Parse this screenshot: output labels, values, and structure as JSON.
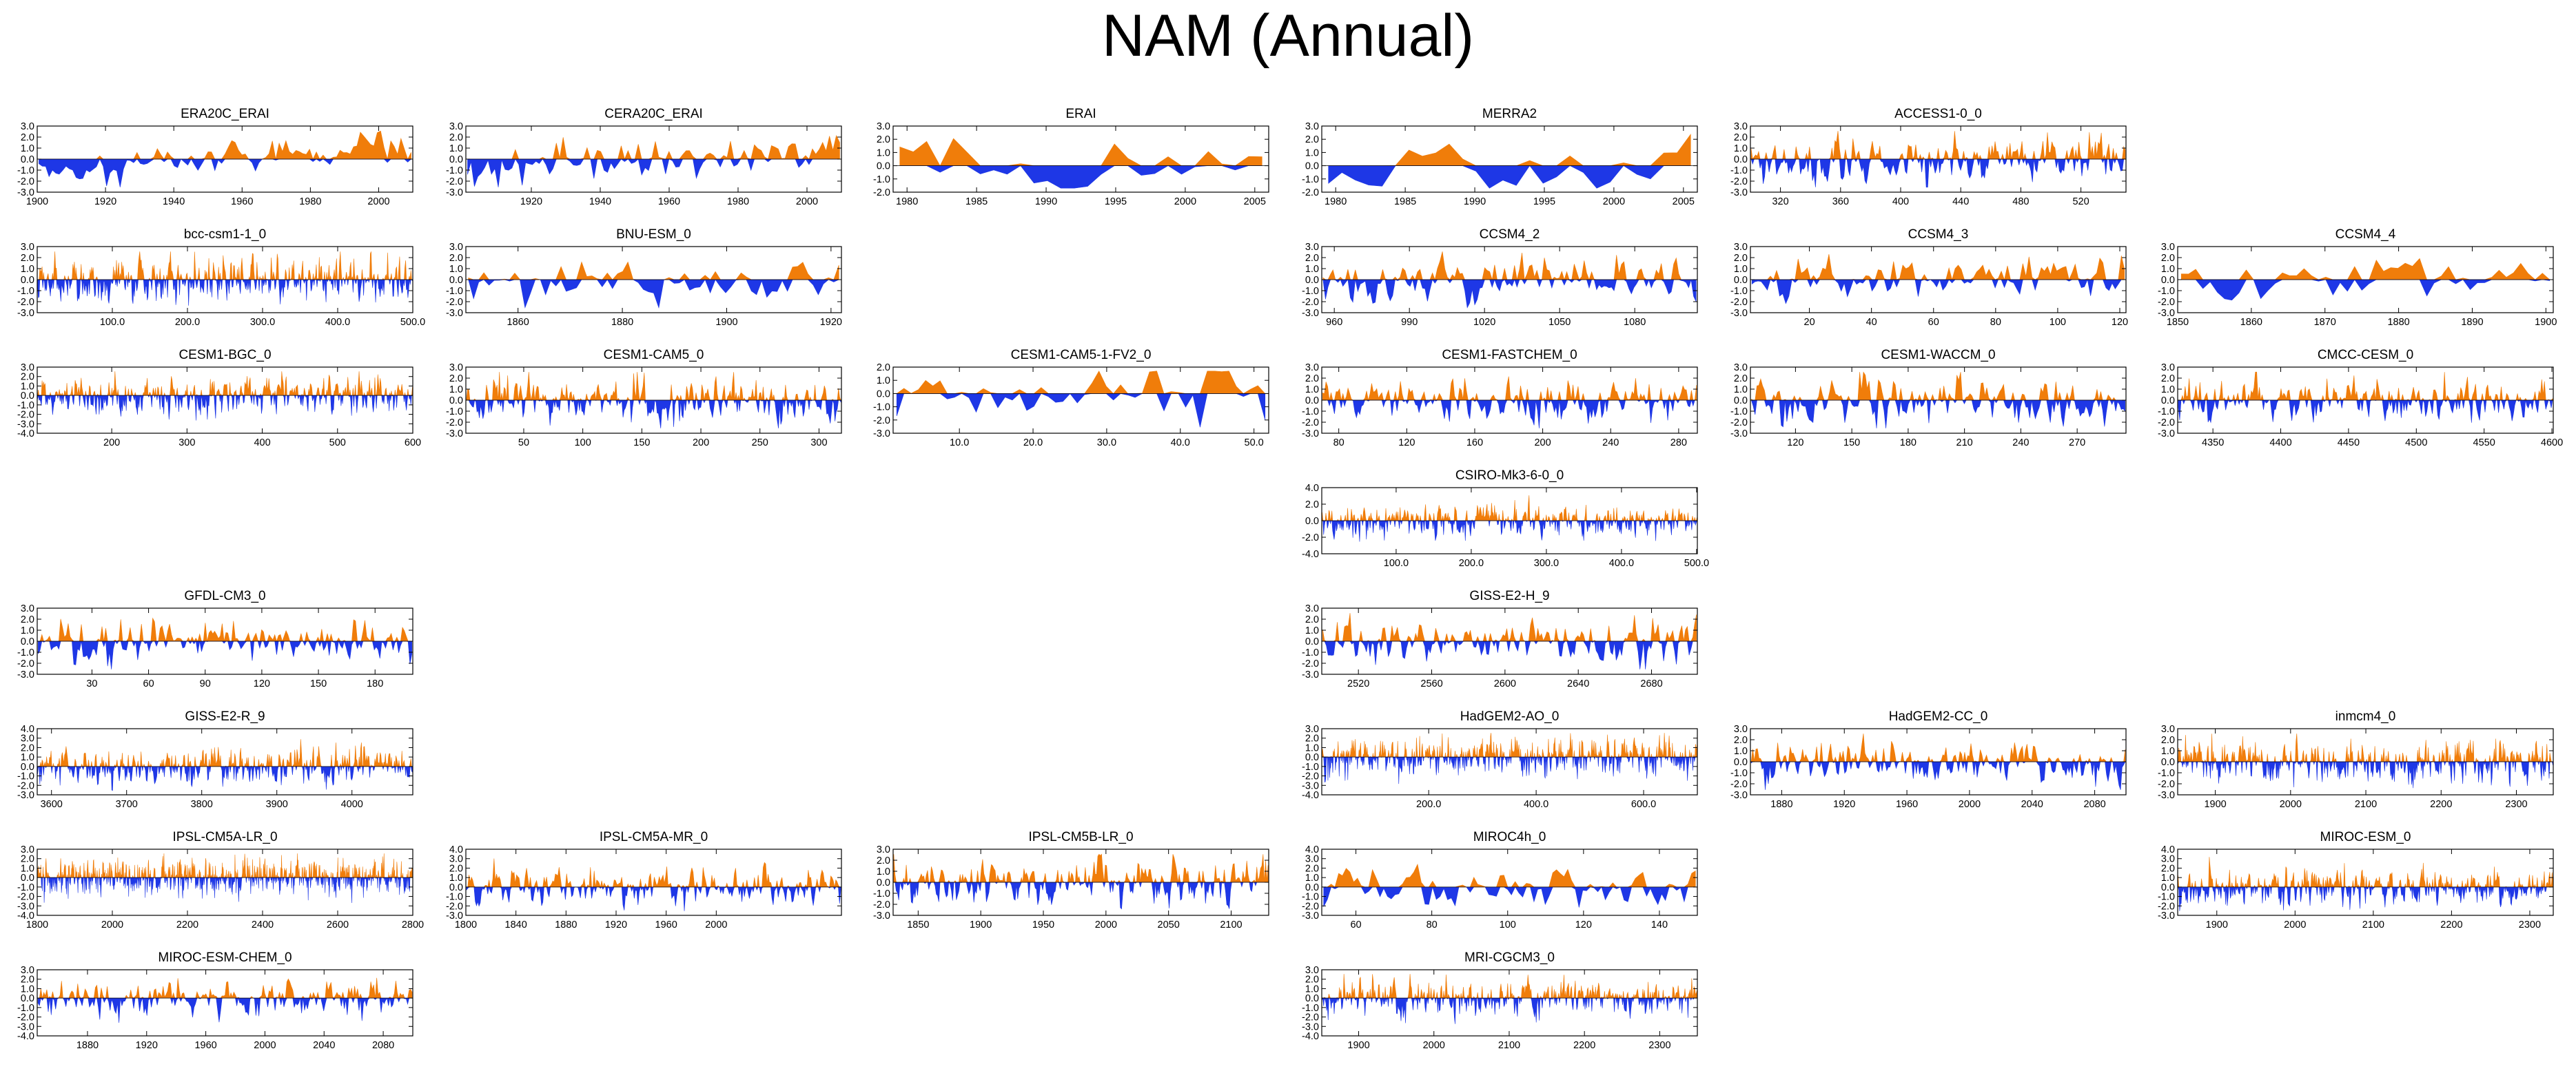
{
  "figure_title": "NAM (Annual)",
  "colors": {
    "positive": "#f07d0a",
    "negative": "#1e37e6",
    "axis": "#000000"
  },
  "chart_data": [
    {
      "type": "area",
      "title": "ERA20C_ERAI",
      "xlim": [
        1900,
        2010
      ],
      "xticks": [
        "1900",
        "1920",
        "1940",
        "1960",
        "1980",
        "2000"
      ],
      "ylim": [
        -3.0,
        3.0
      ],
      "yticks": [
        "3.0",
        "2.0",
        "1.0",
        "0.0",
        "-1.0",
        "-2.0",
        "-3.0"
      ],
      "n_years": 111,
      "seed": 11,
      "amplitude": 0.7,
      "trend": 1.2
    },
    {
      "type": "area",
      "title": "CERA20C_ERAI",
      "xlim": [
        1901,
        2010
      ],
      "xticks": [
        "1920",
        "1940",
        "1960",
        "1980",
        "2000"
      ],
      "ylim": [
        -3.0,
        3.0
      ],
      "yticks": [
        "3.0",
        "2.0",
        "1.0",
        "0.0",
        "-1.0",
        "-2.0",
        "-3.0"
      ],
      "n_years": 110,
      "seed": 12,
      "amplitude": 0.8,
      "trend": 0.5
    },
    {
      "type": "area",
      "title": "ERAI",
      "xlim": [
        1979,
        2006
      ],
      "xticks": [
        "1980",
        "1985",
        "1990",
        "1995",
        "2000",
        "2005"
      ],
      "ylim": [
        -2.0,
        3.0
      ],
      "yticks": [
        "3.0",
        "2.0",
        "1.0",
        "0.0",
        "-1.0",
        "-2.0"
      ],
      "n_years": 28,
      "seed": 13,
      "amplitude": 1.0,
      "trend": 0
    },
    {
      "type": "area",
      "title": "MERRA2",
      "xlim": [
        1979,
        2006
      ],
      "xticks": [
        "1980",
        "1985",
        "1990",
        "1995",
        "2000",
        "2005"
      ],
      "ylim": [
        -2.0,
        3.0
      ],
      "yticks": [
        "3.0",
        "2.0",
        "1.0",
        "0.0",
        "-1.0",
        "-2.0"
      ],
      "n_years": 28,
      "seed": 14,
      "amplitude": 1.0,
      "trend": 0
    },
    {
      "type": "area",
      "title": "ACCESS1-0_0",
      "xlim": [
        300,
        550
      ],
      "xticks": [
        "320",
        "360",
        "400",
        "440",
        "480",
        "520"
      ],
      "ylim": [
        -3.0,
        3.0
      ],
      "yticks": [
        "3.0",
        "2.0",
        "1.0",
        "0.0",
        "-1.0",
        "-2.0",
        "-3.0"
      ],
      "n_years": 251,
      "seed": 15,
      "amplitude": 0.9,
      "trend": 0
    },
    {
      "type": "area",
      "title": "bcc-csm1-1_0",
      "xlim": [
        0,
        500
      ],
      "xticks": [
        "100.0",
        "200.0",
        "300.0",
        "400.0",
        "500.0"
      ],
      "ylim": [
        -3.0,
        3.0
      ],
      "yticks": [
        "3.0",
        "2.0",
        "1.0",
        "0.0",
        "-1.0",
        "-2.0",
        "-3.0"
      ],
      "n_years": 500,
      "seed": 16,
      "amplitude": 0.9,
      "trend": 0
    },
    {
      "type": "area",
      "title": "BNU-ESM_0",
      "xlim": [
        1850,
        1922
      ],
      "xticks": [
        "1860",
        "1880",
        "1900",
        "1920"
      ],
      "ylim": [
        -3.0,
        3.0
      ],
      "yticks": [
        "3.0",
        "2.0",
        "1.0",
        "0.0",
        "-1.0",
        "-2.0",
        "-3.0"
      ],
      "n_years": 73,
      "seed": 17,
      "amplitude": 0.9,
      "trend": 0
    },
    {
      "type": "area",
      "title": "CCSM4_2",
      "xlim": [
        955,
        1105
      ],
      "xticks": [
        "960",
        "990",
        "1020",
        "1050",
        "1080"
      ],
      "ylim": [
        -3.0,
        3.0
      ],
      "yticks": [
        "3.0",
        "2.0",
        "1.0",
        "0.0",
        "-1.0",
        "-2.0",
        "-3.0"
      ],
      "n_years": 151,
      "seed": 18,
      "amplitude": 0.9,
      "trend": 0
    },
    {
      "type": "area",
      "title": "CCSM4_3",
      "xlim": [
        1,
        122
      ],
      "xticks": [
        "20",
        "40",
        "60",
        "80",
        "100",
        "120"
      ],
      "ylim": [
        -3.0,
        3.0
      ],
      "yticks": [
        "3.0",
        "2.0",
        "1.0",
        "0.0",
        "-1.0",
        "-2.0",
        "-3.0"
      ],
      "n_years": 122,
      "seed": 19,
      "amplitude": 0.9,
      "trend": 0
    },
    {
      "type": "area",
      "title": "CCSM4_4",
      "xlim": [
        1850,
        1901
      ],
      "xticks": [
        "1850",
        "1860",
        "1870",
        "1880",
        "1890",
        "1900"
      ],
      "ylim": [
        -3.0,
        3.0
      ],
      "yticks": [
        "3.0",
        "2.0",
        "1.0",
        "0.0",
        "-1.0",
        "-2.0",
        "-3.0"
      ],
      "n_years": 52,
      "seed": 20,
      "amplitude": 1.0,
      "trend": 0
    },
    {
      "type": "area",
      "title": "CESM1-BGC_0",
      "xlim": [
        101,
        600
      ],
      "xticks": [
        "200",
        "300",
        "400",
        "500",
        "600"
      ],
      "ylim": [
        -4.0,
        3.0
      ],
      "yticks": [
        "3.0",
        "2.0",
        "1.0",
        "0.0",
        "-1.0",
        "-2.0",
        "-3.0",
        "-4.0"
      ],
      "n_years": 500,
      "seed": 21,
      "amplitude": 0.9,
      "trend": 0
    },
    {
      "type": "area",
      "title": "CESM1-CAM5_0",
      "xlim": [
        1,
        319
      ],
      "xticks": [
        "50",
        "100",
        "150",
        "200",
        "250",
        "300"
      ],
      "ylim": [
        -3.0,
        3.0
      ],
      "yticks": [
        "3.0",
        "2.0",
        "1.0",
        "0.0",
        "-1.0",
        "-2.0",
        "-3.0"
      ],
      "n_years": 319,
      "seed": 22,
      "amplitude": 0.9,
      "trend": 0
    },
    {
      "type": "area",
      "title": "CESM1-CAM5-1-FV2_0",
      "xlim": [
        1,
        52
      ],
      "xticks": [
        "10.0",
        "20.0",
        "30.0",
        "40.0",
        "50.0"
      ],
      "ylim": [
        -3.0,
        2.0
      ],
      "yticks": [
        "2.0",
        "1.0",
        "0.0",
        "-1.0",
        "-2.0",
        "-3.0"
      ],
      "n_years": 52,
      "seed": 23,
      "amplitude": 1.0,
      "trend": 0
    },
    {
      "type": "area",
      "title": "CESM1-FASTCHEM_0",
      "xlim": [
        70,
        291
      ],
      "xticks": [
        "80",
        "120",
        "160",
        "200",
        "240",
        "280"
      ],
      "ylim": [
        -3.0,
        3.0
      ],
      "yticks": [
        "3.0",
        "2.0",
        "1.0",
        "0.0",
        "-1.0",
        "-2.0",
        "-3.0"
      ],
      "n_years": 222,
      "seed": 24,
      "amplitude": 0.9,
      "trend": 0
    },
    {
      "type": "area",
      "title": "CESM1-WACCM_0",
      "xlim": [
        96,
        296
      ],
      "xticks": [
        "120",
        "150",
        "180",
        "210",
        "240",
        "270"
      ],
      "ylim": [
        -3.0,
        3.0
      ],
      "yticks": [
        "3.0",
        "2.0",
        "1.0",
        "0.0",
        "-1.0",
        "-2.0",
        "-3.0"
      ],
      "n_years": 201,
      "seed": 25,
      "amplitude": 1.0,
      "trend": 0
    },
    {
      "type": "area",
      "title": "CMCC-CESM_0",
      "xlim": [
        4324,
        4601
      ],
      "xticks": [
        "4350",
        "4400",
        "4450",
        "4500",
        "4550",
        "4600"
      ],
      "ylim": [
        -3.0,
        3.0
      ],
      "yticks": [
        "3.0",
        "2.0",
        "1.0",
        "0.0",
        "-1.0",
        "-2.0",
        "-3.0"
      ],
      "n_years": 278,
      "seed": 26,
      "amplitude": 0.9,
      "trend": 0
    },
    {
      "type": "area",
      "title": "CSIRO-Mk3-6-0_0",
      "xlim": [
        1,
        501
      ],
      "xticks": [
        "100.0",
        "200.0",
        "300.0",
        "400.0",
        "500.0"
      ],
      "ylim": [
        -4.0,
        4.0
      ],
      "yticks": [
        "4.0",
        "2.0",
        "0.0",
        "-2.0",
        "-4.0"
      ],
      "n_years": 501,
      "seed": 27,
      "amplitude": 0.9,
      "trend": 0
    },
    {
      "type": "area",
      "title": "GFDL-CM3_0",
      "xlim": [
        1,
        200
      ],
      "xticks": [
        "30",
        "60",
        "90",
        "120",
        "150",
        "180"
      ],
      "ylim": [
        -3.0,
        3.0
      ],
      "yticks": [
        "3.0",
        "2.0",
        "1.0",
        "0.0",
        "-1.0",
        "-2.0",
        "-3.0"
      ],
      "n_years": 200,
      "seed": 28,
      "amplitude": 0.9,
      "trend": 0
    },
    {
      "type": "area",
      "title": "GISS-E2-H_9",
      "xlim": [
        2500,
        2705
      ],
      "xticks": [
        "2520",
        "2560",
        "2600",
        "2640",
        "2680"
      ],
      "ylim": [
        -3.0,
        3.0
      ],
      "yticks": [
        "3.0",
        "2.0",
        "1.0",
        "0.0",
        "-1.0",
        "-2.0",
        "-3.0"
      ],
      "n_years": 206,
      "seed": 29,
      "amplitude": 0.9,
      "trend": 0
    },
    {
      "type": "area",
      "title": "GISS-E2-R_9",
      "xlim": [
        3581,
        4081
      ],
      "xticks": [
        "3600",
        "3700",
        "3800",
        "3900",
        "4000"
      ],
      "ylim": [
        -3.0,
        4.0
      ],
      "yticks": [
        "4.0",
        "3.0",
        "2.0",
        "1.0",
        "0.0",
        "-1.0",
        "-2.0",
        "-3.0"
      ],
      "n_years": 501,
      "seed": 30,
      "amplitude": 0.9,
      "trend": 0
    },
    {
      "type": "area",
      "title": "HadGEM2-AO_0",
      "xlim": [
        1,
        700
      ],
      "xticks": [
        "200.0",
        "400.0",
        "600.0"
      ],
      "ylim": [
        -4.0,
        3.0
      ],
      "yticks": [
        "3.0",
        "2.0",
        "1.0",
        "0.0",
        "-1.0",
        "-2.0",
        "-3.0",
        "-4.0"
      ],
      "n_years": 700,
      "seed": 31,
      "amplitude": 0.9,
      "trend": 0
    },
    {
      "type": "area",
      "title": "HadGEM2-CC_0",
      "xlim": [
        1860,
        2100
      ],
      "xticks": [
        "1880",
        "1920",
        "1960",
        "2000",
        "2040",
        "2080"
      ],
      "ylim": [
        -3.0,
        3.0
      ],
      "yticks": [
        "3.0",
        "2.0",
        "1.0",
        "0.0",
        "-1.0",
        "-2.0",
        "-3.0"
      ],
      "n_years": 241,
      "seed": 32,
      "amplitude": 0.9,
      "trend": 0
    },
    {
      "type": "area",
      "title": "inmcm4_0",
      "xlim": [
        1850,
        2349
      ],
      "xticks": [
        "1900",
        "2000",
        "2100",
        "2200",
        "2300"
      ],
      "ylim": [
        -3.0,
        3.0
      ],
      "yticks": [
        "3.0",
        "2.0",
        "1.0",
        "0.0",
        "-1.0",
        "-2.0",
        "-3.0"
      ],
      "n_years": 500,
      "seed": 33,
      "amplitude": 0.9,
      "trend": 0
    },
    {
      "type": "area",
      "title": "IPSL-CM5A-LR_0",
      "xlim": [
        1800,
        2800
      ],
      "xticks": [
        "1800",
        "2000",
        "2200",
        "2400",
        "2600",
        "2800"
      ],
      "ylim": [
        -4.0,
        3.0
      ],
      "yticks": [
        "3.0",
        "2.0",
        "1.0",
        "0.0",
        "-1.0",
        "-2.0",
        "-3.0",
        "-4.0"
      ],
      "n_years": 1000,
      "seed": 34,
      "amplitude": 0.9,
      "trend": 0
    },
    {
      "type": "area",
      "title": "IPSL-CM5A-MR_0",
      "xlim": [
        1800,
        2100
      ],
      "xticks": [
        "1800",
        "1840",
        "1880",
        "1920",
        "1960",
        "2000"
      ],
      "ylim": [
        -3.0,
        4.0
      ],
      "yticks": [
        "4.0",
        "3.0",
        "2.0",
        "1.0",
        "0.0",
        "-1.0",
        "-2.0",
        "-3.0"
      ],
      "n_years": 300,
      "seed": 35,
      "amplitude": 0.9,
      "trend": 0
    },
    {
      "type": "area",
      "title": "IPSL-CM5B-LR_0",
      "xlim": [
        1830,
        2130
      ],
      "xticks": [
        "1850",
        "1900",
        "1950",
        "2000",
        "2050",
        "2100"
      ],
      "ylim": [
        -3.0,
        3.0
      ],
      "yticks": [
        "3.0",
        "2.0",
        "1.0",
        "0.0",
        "-1.0",
        "-2.0",
        "-3.0"
      ],
      "n_years": 300,
      "seed": 36,
      "amplitude": 0.9,
      "trend": 0
    },
    {
      "type": "area",
      "title": "MIROC4h_0",
      "xlim": [
        51,
        150
      ],
      "xticks": [
        "60",
        "80",
        "100",
        "120",
        "140"
      ],
      "ylim": [
        -3.0,
        4.0
      ],
      "yticks": [
        "4.0",
        "3.0",
        "2.0",
        "1.0",
        "0.0",
        "-1.0",
        "-2.0",
        "-3.0"
      ],
      "n_years": 100,
      "seed": 37,
      "amplitude": 1.0,
      "trend": 0
    },
    {
      "type": "area",
      "title": "MIROC-ESM_0",
      "xlim": [
        1850,
        2330
      ],
      "xticks": [
        "1900",
        "2000",
        "2100",
        "2200",
        "2300"
      ],
      "ylim": [
        -3.0,
        4.0
      ],
      "yticks": [
        "4.0",
        "3.0",
        "2.0",
        "1.0",
        "0.0",
        "-1.0",
        "-2.0",
        "-3.0"
      ],
      "n_years": 481,
      "seed": 38,
      "amplitude": 0.9,
      "trend": 0
    },
    {
      "type": "area",
      "title": "MIROC-ESM-CHEM_0",
      "xlim": [
        1846,
        2100
      ],
      "xticks": [
        "1880",
        "1920",
        "1960",
        "2000",
        "2040",
        "2080"
      ],
      "ylim": [
        -4.0,
        3.0
      ],
      "yticks": [
        "3.0",
        "2.0",
        "1.0",
        "0.0",
        "-1.0",
        "-2.0",
        "-3.0",
        "-4.0"
      ],
      "n_years": 255,
      "seed": 39,
      "amplitude": 0.9,
      "trend": 0
    },
    {
      "type": "area",
      "title": "MRI-CGCM3_0",
      "xlim": [
        1851,
        2350
      ],
      "xticks": [
        "1900",
        "2000",
        "2100",
        "2200",
        "2300"
      ],
      "ylim": [
        -4.0,
        3.0
      ],
      "yticks": [
        "3.0",
        "2.0",
        "1.0",
        "0.0",
        "-1.0",
        "-2.0",
        "-3.0",
        "-4.0"
      ],
      "n_years": 500,
      "seed": 40,
      "amplitude": 0.9,
      "trend": 0
    }
  ]
}
